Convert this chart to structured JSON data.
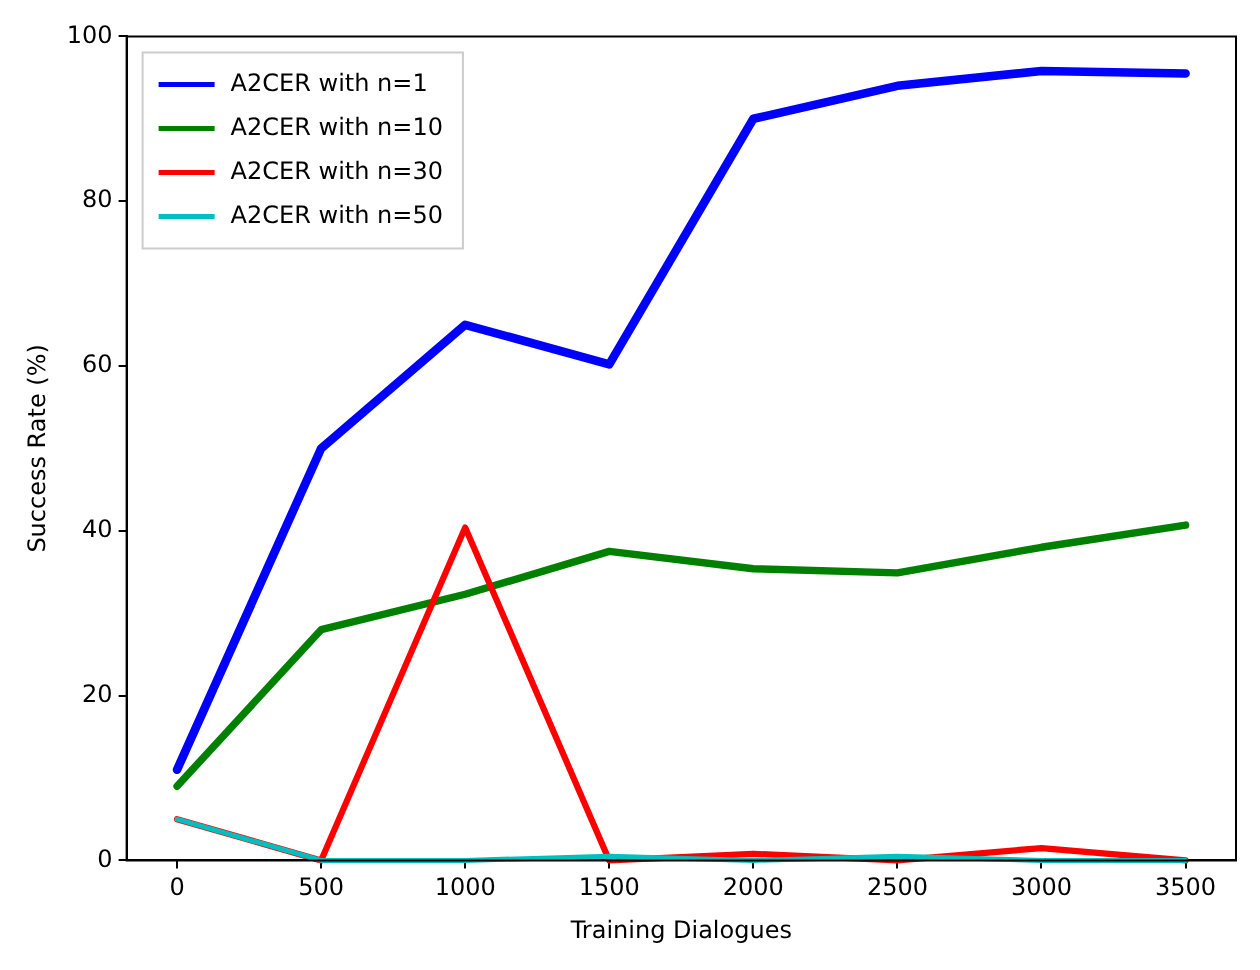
{
  "chart_data": {
    "type": "line",
    "xlabel": "Training Dialogues",
    "ylabel": "Success Rate (%)",
    "x": [
      0,
      500,
      1000,
      1500,
      2000,
      2500,
      3000,
      3500
    ],
    "series": [
      {
        "name": "A2CER with n=1",
        "color": "#0000ff",
        "values": [
          11,
          50,
          65,
          60.2,
          90,
          94,
          95.8,
          95.5
        ]
      },
      {
        "name": "A2CER with n=10",
        "color": "#008000",
        "values": [
          9,
          28,
          32.3,
          37.5,
          35.4,
          34.9,
          38,
          40.7
        ]
      },
      {
        "name": "A2CER with n=30",
        "color": "#ff0000",
        "values": [
          5,
          0,
          40.4,
          0,
          0.8,
          0,
          1.5,
          0
        ]
      },
      {
        "name": "A2CER with n=50",
        "color": "#00bfbf",
        "values": [
          5,
          0,
          0,
          0.5,
          0,
          0.5,
          0,
          0
        ]
      }
    ],
    "xlim": [
      -175,
      3675
    ],
    "xticks": [
      0,
      500,
      1000,
      1500,
      2000,
      2500,
      3000,
      3500
    ],
    "ylim": [
      0,
      100
    ],
    "yticks": [
      0,
      20,
      40,
      60,
      80,
      100
    ],
    "grid": false,
    "legend": "top left",
    "marker": "none",
    "line_style": "solid"
  }
}
